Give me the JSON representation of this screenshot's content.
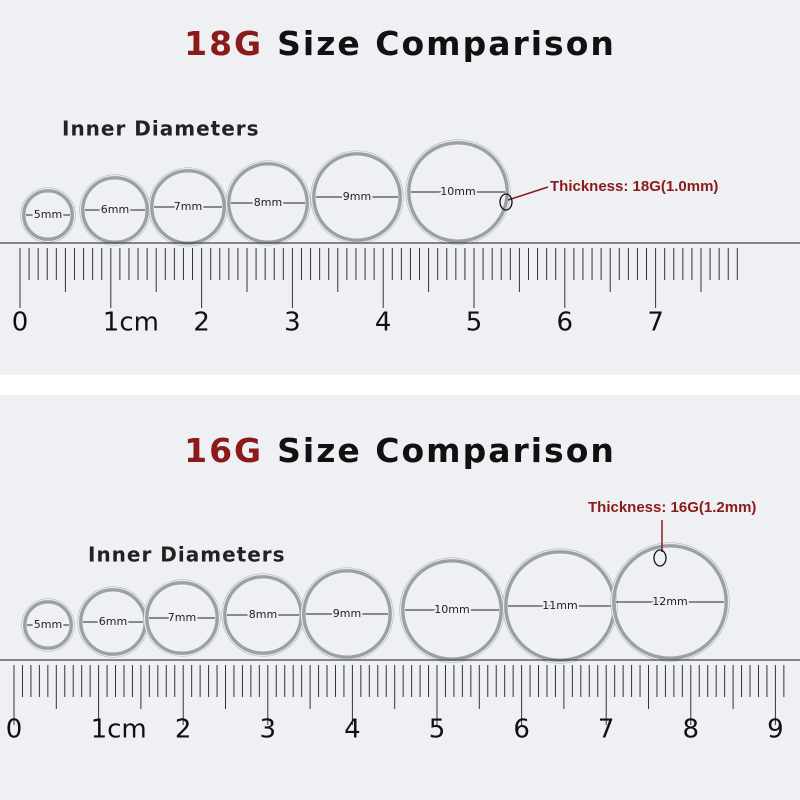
{
  "panels": [
    {
      "gauge": "18G",
      "title": "Size Comparison",
      "subtitle": "Inner Diameters",
      "rings": [
        "5mm",
        "6mm",
        "7mm",
        "8mm",
        "9mm",
        "10mm"
      ],
      "thickness": "Thickness: 18G(1.0mm)",
      "ruler_labels": [
        "0",
        "1cm",
        "2",
        "3",
        "4",
        "5",
        "6",
        "7"
      ]
    },
    {
      "gauge": "16G",
      "title": "Size Comparison",
      "subtitle": "Inner Diameters",
      "rings": [
        "5mm",
        "6mm",
        "7mm",
        "8mm",
        "9mm",
        "10mm",
        "11mm",
        "12mm"
      ],
      "thickness": "Thickness: 16G(1.2mm)",
      "ruler_labels": [
        "0",
        "1cm",
        "2",
        "3",
        "4",
        "5",
        "6",
        "7",
        "8",
        "9"
      ]
    }
  ]
}
